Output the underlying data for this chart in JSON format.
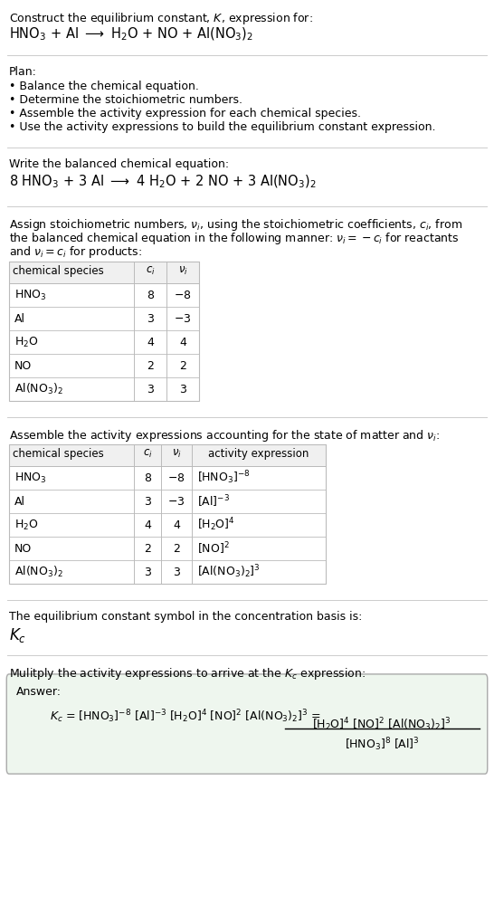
{
  "title_line1": "Construct the equilibrium constant, $K$, expression for:",
  "title_line2": "HNO$_3$ + Al $\\longrightarrow$ H$_2$O + NO + Al(NO$_3$)$_2$",
  "plan_header": "Plan:",
  "plan_bullets": [
    "• Balance the chemical equation.",
    "• Determine the stoichiometric numbers.",
    "• Assemble the activity expression for each chemical species.",
    "• Use the activity expressions to build the equilibrium constant expression."
  ],
  "balanced_header": "Write the balanced chemical equation:",
  "balanced_eq": "8 HNO$_3$ + 3 Al $\\longrightarrow$ 4 H$_2$O + 2 NO + 3 Al(NO$_3$)$_2$",
  "stoich_header_lines": [
    "Assign stoichiometric numbers, $\\nu_i$, using the stoichiometric coefficients, $c_i$, from",
    "the balanced chemical equation in the following manner: $\\nu_i = -c_i$ for reactants",
    "and $\\nu_i = c_i$ for products:"
  ],
  "table1_col_headers": [
    "chemical species",
    "$c_i$",
    "$\\nu_i$"
  ],
  "table1_rows": [
    [
      "HNO$_3$",
      "8",
      "$-8$"
    ],
    [
      "Al",
      "3",
      "$-3$"
    ],
    [
      "H$_2$O",
      "4",
      "4"
    ],
    [
      "NO",
      "2",
      "2"
    ],
    [
      "Al(NO$_3$)$_2$",
      "3",
      "3"
    ]
  ],
  "activity_header": "Assemble the activity expressions accounting for the state of matter and $\\nu_i$:",
  "table2_col_headers": [
    "chemical species",
    "$c_i$",
    "$\\nu_i$",
    "activity expression"
  ],
  "table2_rows": [
    [
      "HNO$_3$",
      "8",
      "$-8$",
      "[HNO$_3$]$^{-8}$"
    ],
    [
      "Al",
      "3",
      "$-3$",
      "[Al]$^{-3}$"
    ],
    [
      "H$_2$O",
      "4",
      "4",
      "[H$_2$O]$^4$"
    ],
    [
      "NO",
      "2",
      "2",
      "[NO]$^2$"
    ],
    [
      "Al(NO$_3$)$_2$",
      "3",
      "3",
      "[Al(NO$_3$)$_2$]$^3$"
    ]
  ],
  "kc_header": "The equilibrium constant symbol in the concentration basis is:",
  "kc_symbol": "$K_c$",
  "multiply_header": "Mulitply the activity expressions to arrive at the $K_c$ expression:",
  "answer_label": "Answer:",
  "answer_eq": "$K_c$ = [HNO$_3$]$^{-8}$ [Al]$^{-3}$ [H$_2$O]$^4$ [NO]$^2$ [Al(NO$_3$)$_2$]$^3$ =",
  "answer_num": "[H$_2$O]$^4$ [NO]$^2$ [Al(NO$_3$)$_2$]$^3$",
  "answer_den": "[HNO$_3$]$^8$ [Al]$^3$",
  "bg_color": "#ffffff",
  "text_color": "#000000",
  "grid_color": "#bbbbbb",
  "sep_color": "#cccccc",
  "answer_bg": "#eef6ee",
  "answer_border": "#aaaaaa",
  "font_size": 9.0,
  "title2_font": 10.5,
  "balanced_eq_font": 10.5,
  "kc_font": 12.0
}
